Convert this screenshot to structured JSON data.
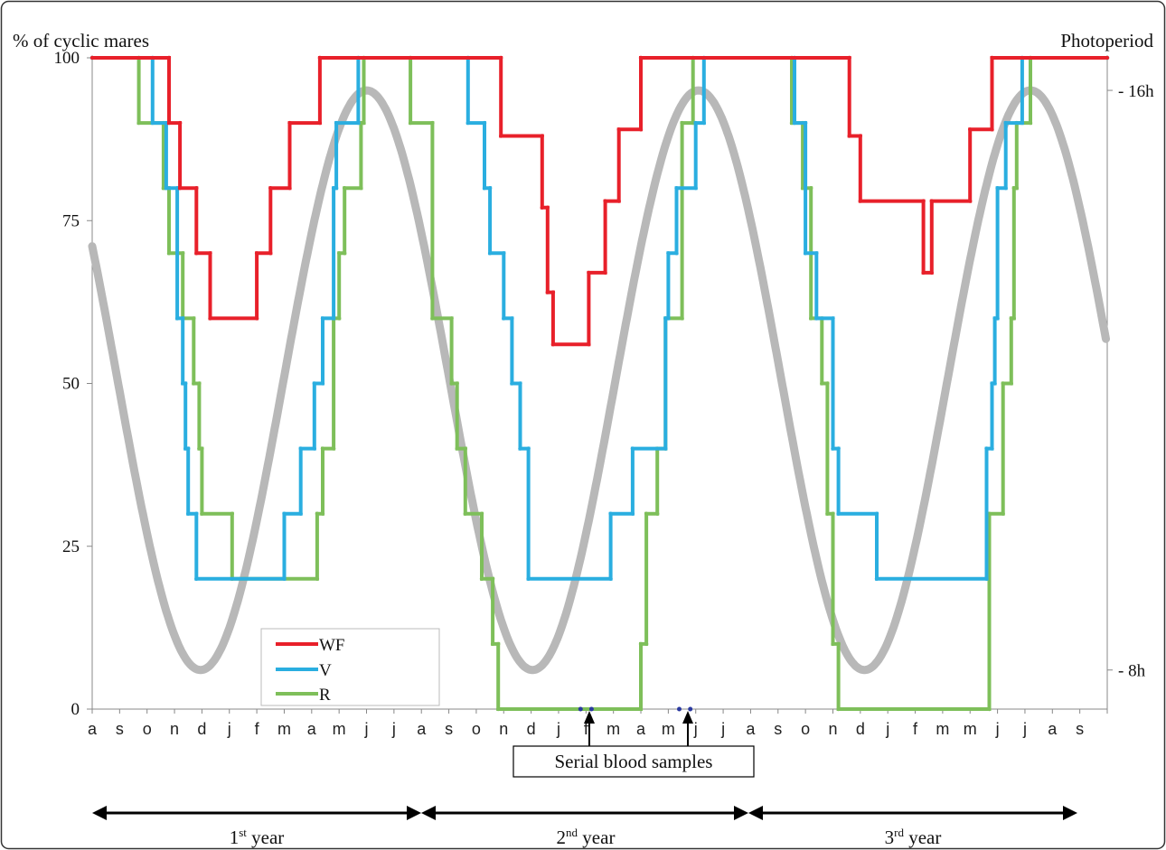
{
  "chart_data": {
    "type": "line",
    "ylabel": "% of cyclic mares",
    "y2label": "Photoperiod",
    "ylim": [
      0,
      100
    ],
    "yticks": [
      "0",
      "25",
      "50",
      "75",
      "100"
    ],
    "y2ticks": [
      "8h",
      "16h"
    ],
    "y2lim_hours": [
      8,
      16
    ],
    "xlim_months": [
      0,
      37
    ],
    "x_tick_labels": [
      "a",
      "s",
      "o",
      "n",
      "d",
      "j",
      "f",
      "m",
      "a",
      "m",
      "j",
      "j",
      "a",
      "s",
      "o",
      "n",
      "d",
      "j",
      "f",
      "m",
      "a",
      "m",
      "j",
      "j",
      "a",
      "s",
      "o",
      "n",
      "d",
      "j",
      "f",
      "m",
      "m",
      "j",
      "j",
      "a",
      "s"
    ],
    "series": [
      {
        "name": "WF",
        "color": "#e8202a",
        "points": [
          [
            0,
            100
          ],
          [
            2.8,
            100
          ],
          [
            2.8,
            90
          ],
          [
            3.2,
            90
          ],
          [
            3.2,
            80
          ],
          [
            3.8,
            80
          ],
          [
            3.8,
            70
          ],
          [
            4.3,
            70
          ],
          [
            4.3,
            60
          ],
          [
            6.0,
            60
          ],
          [
            6.0,
            70
          ],
          [
            6.5,
            70
          ],
          [
            6.5,
            80
          ],
          [
            7.2,
            80
          ],
          [
            7.2,
            90
          ],
          [
            8.3,
            90
          ],
          [
            8.3,
            100
          ],
          [
            14.9,
            100
          ],
          [
            14.9,
            88
          ],
          [
            16.4,
            88
          ],
          [
            16.4,
            77
          ],
          [
            16.6,
            77
          ],
          [
            16.6,
            64
          ],
          [
            16.8,
            64
          ],
          [
            16.8,
            56
          ],
          [
            18.1,
            56
          ],
          [
            18.1,
            67
          ],
          [
            18.7,
            67
          ],
          [
            18.7,
            78
          ],
          [
            19.2,
            78
          ],
          [
            19.2,
            89
          ],
          [
            20.0,
            89
          ],
          [
            20.0,
            100
          ],
          [
            27.6,
            100
          ],
          [
            27.6,
            88
          ],
          [
            28.0,
            88
          ],
          [
            28.0,
            78
          ],
          [
            30.3,
            78
          ],
          [
            30.3,
            67
          ],
          [
            30.6,
            67
          ],
          [
            30.6,
            78
          ],
          [
            32.0,
            78
          ],
          [
            32.0,
            89
          ],
          [
            32.8,
            89
          ],
          [
            32.8,
            100
          ],
          [
            37,
            100
          ]
        ]
      },
      {
        "name": "V",
        "color": "#2aaee0",
        "points": [
          [
            0,
            100
          ],
          [
            2.2,
            100
          ],
          [
            2.2,
            90
          ],
          [
            2.7,
            90
          ],
          [
            2.7,
            80
          ],
          [
            3.1,
            80
          ],
          [
            3.1,
            60
          ],
          [
            3.3,
            60
          ],
          [
            3.3,
            50
          ],
          [
            3.4,
            50
          ],
          [
            3.4,
            40
          ],
          [
            3.5,
            40
          ],
          [
            3.5,
            30
          ],
          [
            3.8,
            30
          ],
          [
            3.8,
            20
          ],
          [
            7.0,
            20
          ],
          [
            7.0,
            30
          ],
          [
            7.6,
            30
          ],
          [
            7.6,
            40
          ],
          [
            8.1,
            40
          ],
          [
            8.1,
            50
          ],
          [
            8.4,
            50
          ],
          [
            8.4,
            60
          ],
          [
            8.8,
            60
          ],
          [
            8.8,
            80
          ],
          [
            8.9,
            80
          ],
          [
            8.9,
            90
          ],
          [
            9.7,
            90
          ],
          [
            9.7,
            100
          ],
          [
            13.7,
            100
          ],
          [
            13.7,
            90
          ],
          [
            14.3,
            90
          ],
          [
            14.3,
            80
          ],
          [
            14.5,
            80
          ],
          [
            14.5,
            70
          ],
          [
            15.0,
            70
          ],
          [
            15.0,
            60
          ],
          [
            15.3,
            60
          ],
          [
            15.3,
            50
          ],
          [
            15.6,
            50
          ],
          [
            15.6,
            40
          ],
          [
            15.9,
            40
          ],
          [
            15.9,
            20
          ],
          [
            18.9,
            20
          ],
          [
            18.9,
            30
          ],
          [
            19.7,
            30
          ],
          [
            19.7,
            40
          ],
          [
            20.9,
            40
          ],
          [
            20.9,
            60
          ],
          [
            21.0,
            60
          ],
          [
            21.0,
            70
          ],
          [
            21.3,
            70
          ],
          [
            21.3,
            80
          ],
          [
            22.0,
            80
          ],
          [
            22.0,
            90
          ],
          [
            22.3,
            90
          ],
          [
            22.3,
            100
          ],
          [
            25.6,
            100
          ],
          [
            25.6,
            90
          ],
          [
            26.0,
            90
          ],
          [
            26.0,
            70
          ],
          [
            26.4,
            70
          ],
          [
            26.4,
            60
          ],
          [
            27.0,
            60
          ],
          [
            27.0,
            40
          ],
          [
            27.2,
            40
          ],
          [
            27.2,
            30
          ],
          [
            28.6,
            30
          ],
          [
            28.6,
            20
          ],
          [
            32.6,
            20
          ],
          [
            32.6,
            40
          ],
          [
            32.8,
            40
          ],
          [
            32.8,
            50
          ],
          [
            32.9,
            50
          ],
          [
            32.9,
            60
          ],
          [
            33.0,
            60
          ],
          [
            33.0,
            80
          ],
          [
            33.3,
            80
          ],
          [
            33.3,
            90
          ],
          [
            33.9,
            90
          ],
          [
            33.9,
            100
          ],
          [
            37,
            100
          ]
        ]
      },
      {
        "name": "R",
        "color": "#7ebf5a",
        "points": [
          [
            0,
            100
          ],
          [
            1.7,
            100
          ],
          [
            1.7,
            90
          ],
          [
            2.6,
            90
          ],
          [
            2.6,
            80
          ],
          [
            2.8,
            80
          ],
          [
            2.8,
            70
          ],
          [
            3.3,
            70
          ],
          [
            3.3,
            60
          ],
          [
            3.7,
            60
          ],
          [
            3.7,
            50
          ],
          [
            3.9,
            50
          ],
          [
            3.9,
            40
          ],
          [
            4.0,
            40
          ],
          [
            4.0,
            30
          ],
          [
            5.1,
            30
          ],
          [
            5.1,
            20
          ],
          [
            8.2,
            20
          ],
          [
            8.2,
            30
          ],
          [
            8.4,
            30
          ],
          [
            8.4,
            40
          ],
          [
            8.8,
            40
          ],
          [
            8.8,
            60
          ],
          [
            9.0,
            60
          ],
          [
            9.0,
            70
          ],
          [
            9.2,
            70
          ],
          [
            9.2,
            80
          ],
          [
            9.8,
            80
          ],
          [
            9.8,
            90
          ],
          [
            9.9,
            90
          ],
          [
            9.9,
            100
          ],
          [
            11.6,
            100
          ],
          [
            11.6,
            90
          ],
          [
            12.4,
            90
          ],
          [
            12.4,
            60
          ],
          [
            13.1,
            60
          ],
          [
            13.1,
            50
          ],
          [
            13.3,
            50
          ],
          [
            13.3,
            40
          ],
          [
            13.6,
            40
          ],
          [
            13.6,
            30
          ],
          [
            14.2,
            30
          ],
          [
            14.2,
            20
          ],
          [
            14.6,
            20
          ],
          [
            14.6,
            10
          ],
          [
            14.8,
            10
          ],
          [
            14.8,
            0
          ],
          [
            20.0,
            0
          ],
          [
            20.0,
            10
          ],
          [
            20.2,
            10
          ],
          [
            20.2,
            30
          ],
          [
            20.6,
            30
          ],
          [
            20.6,
            40
          ],
          [
            20.9,
            40
          ],
          [
            20.9,
            60
          ],
          [
            21.5,
            60
          ],
          [
            21.5,
            90
          ],
          [
            21.9,
            90
          ],
          [
            21.9,
            100
          ],
          [
            25.5,
            100
          ],
          [
            25.5,
            90
          ],
          [
            25.9,
            90
          ],
          [
            25.9,
            80
          ],
          [
            26.2,
            80
          ],
          [
            26.2,
            60
          ],
          [
            26.6,
            60
          ],
          [
            26.6,
            50
          ],
          [
            26.8,
            50
          ],
          [
            26.8,
            30
          ],
          [
            27.0,
            30
          ],
          [
            27.0,
            10
          ],
          [
            27.2,
            10
          ],
          [
            27.2,
            0
          ],
          [
            32.7,
            0
          ],
          [
            32.7,
            30
          ],
          [
            33.2,
            30
          ],
          [
            33.2,
            50
          ],
          [
            33.5,
            50
          ],
          [
            33.5,
            60
          ],
          [
            33.6,
            60
          ],
          [
            33.6,
            80
          ],
          [
            33.7,
            80
          ],
          [
            33.7,
            90
          ],
          [
            34.2,
            90
          ],
          [
            34.2,
            100
          ],
          [
            37,
            100
          ]
        ]
      },
      {
        "name": "Photoperiod",
        "color": "#b8b8b8",
        "axis": "right",
        "function": "sine",
        "peak_month": 10,
        "peak_value": 95,
        "trough_value": 6,
        "period_months": 12.1
      }
    ],
    "legend": {
      "placement": "bottom-left",
      "entries": [
        "WF",
        "V",
        "R"
      ]
    },
    "markers": [
      [
        17.8,
        0
      ],
      [
        18.2,
        0
      ],
      [
        21.4,
        0
      ],
      [
        21.8,
        0
      ]
    ]
  },
  "annotations": {
    "serial_blood_samples": "Serial blood samples",
    "years": [
      {
        "num": "1",
        "sup": "st",
        "word": " year"
      },
      {
        "num": "2",
        "sup": "nd",
        "word": " year"
      },
      {
        "num": "3",
        "sup": "rd",
        "word": " year"
      }
    ]
  }
}
